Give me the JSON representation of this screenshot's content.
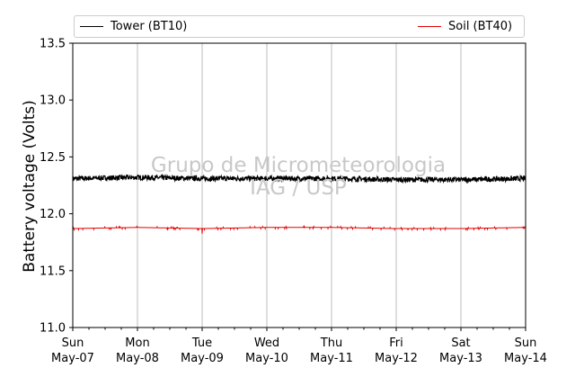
{
  "chart_data": {
    "type": "line",
    "ylabel": "Battery voltage (Volts)",
    "xlabel": "",
    "ylim": [
      11.0,
      13.5
    ],
    "yticks": [
      "11.0",
      "11.5",
      "12.0",
      "12.5",
      "13.0",
      "13.5"
    ],
    "xlim": [
      "2017-05-07",
      "2017-05-14"
    ],
    "xticks": [
      {
        "day": "Sun",
        "date": "May-07"
      },
      {
        "day": "Mon",
        "date": "May-08"
      },
      {
        "day": "Tue",
        "date": "May-09"
      },
      {
        "day": "Wed",
        "date": "May-10"
      },
      {
        "day": "Thu",
        "date": "May-11"
      },
      {
        "day": "Fri",
        "date": "May-12"
      },
      {
        "day": "Sat",
        "date": "May-13"
      },
      {
        "day": "Sun",
        "date": "May-14"
      }
    ],
    "grid": "vertical",
    "legend_position": "top",
    "series": [
      {
        "name": "Tower (BT10)",
        "color": "#000000",
        "x": [
          "May-07",
          "May-08",
          "May-09",
          "May-10",
          "May-11",
          "May-12",
          "May-13",
          "May-14"
        ],
        "values": [
          12.31,
          12.32,
          12.31,
          12.31,
          12.31,
          12.3,
          12.3,
          12.31
        ]
      },
      {
        "name": "Soil (BT40)",
        "color": "#e00000",
        "x": [
          "May-07",
          "May-08",
          "May-09",
          "May-10",
          "May-11",
          "May-12",
          "May-13",
          "May-14"
        ],
        "values": [
          11.87,
          11.88,
          11.87,
          11.88,
          11.88,
          11.87,
          11.87,
          11.88
        ]
      }
    ]
  },
  "watermark": {
    "line1": "Grupo de Micrometeorologia",
    "line2": "IAG / USP"
  }
}
